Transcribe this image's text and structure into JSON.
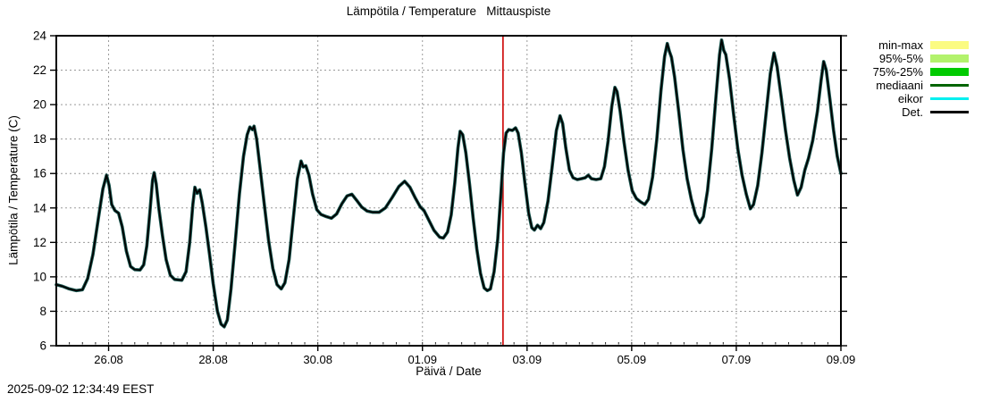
{
  "title": "Lämpötila / Temperature   Mittauspiste",
  "footer": {
    "timestamp": "2025-09-02 12:34:49 EEST"
  },
  "legend": {
    "position": "outside-right-top",
    "items": [
      {
        "label": "min-max",
        "swatch": "box",
        "color": "#fbfb82"
      },
      {
        "label": "95%-5%",
        "swatch": "box",
        "color": "#b2f26c"
      },
      {
        "label": "75%-25%",
        "swatch": "box",
        "color": "#00ca00"
      },
      {
        "label": "mediaani",
        "swatch": "line",
        "color": "#006400"
      },
      {
        "label": "eikor",
        "swatch": "line",
        "color": "#00f0f0"
      },
      {
        "label": "Det.",
        "swatch": "line",
        "color": "#000000"
      }
    ]
  },
  "chart_data": {
    "type": "line",
    "title": "Lämpötila / Temperature   Mittauspiste",
    "xlabel": "Päivä / Date",
    "ylabel": "Lämpötila / Temperature (C)",
    "x_unit": "days since 25.08 00:00",
    "xlim": [
      0,
      15
    ],
    "ylim": [
      6,
      24
    ],
    "grid": true,
    "xticks": [
      {
        "t": 1,
        "label": "26.08"
      },
      {
        "t": 3,
        "label": "28.08"
      },
      {
        "t": 5,
        "label": "30.08"
      },
      {
        "t": 7,
        "label": "01.09"
      },
      {
        "t": 9,
        "label": "03.09"
      },
      {
        "t": 11,
        "label": "05.09"
      },
      {
        "t": 13,
        "label": "07.09"
      },
      {
        "t": 15,
        "label": "09.09"
      }
    ],
    "yticks": [
      6,
      8,
      10,
      12,
      14,
      16,
      18,
      20,
      22,
      24
    ],
    "x_minor_tick_interval": 0.25,
    "now_line": {
      "t": 8.54,
      "color": "#cc0000"
    },
    "series": [
      {
        "name": "Det.",
        "color": "#000000",
        "halo_color": "#14524b",
        "points": [
          [
            0.0,
            9.55
          ],
          [
            0.12,
            9.45
          ],
          [
            0.25,
            9.3
          ],
          [
            0.38,
            9.2
          ],
          [
            0.5,
            9.25
          ],
          [
            0.6,
            9.9
          ],
          [
            0.7,
            11.3
          ],
          [
            0.8,
            13.3
          ],
          [
            0.89,
            15.1
          ],
          [
            0.96,
            15.9
          ],
          [
            1.01,
            15.3
          ],
          [
            1.06,
            14.2
          ],
          [
            1.12,
            13.85
          ],
          [
            1.19,
            13.7
          ],
          [
            1.26,
            12.9
          ],
          [
            1.34,
            11.5
          ],
          [
            1.42,
            10.6
          ],
          [
            1.5,
            10.42
          ],
          [
            1.6,
            10.4
          ],
          [
            1.67,
            10.7
          ],
          [
            1.73,
            11.8
          ],
          [
            1.79,
            13.8
          ],
          [
            1.84,
            15.6
          ],
          [
            1.87,
            16.05
          ],
          [
            1.91,
            15.4
          ],
          [
            1.96,
            14.0
          ],
          [
            2.03,
            12.4
          ],
          [
            2.1,
            11.0
          ],
          [
            2.18,
            10.1
          ],
          [
            2.26,
            9.85
          ],
          [
            2.4,
            9.8
          ],
          [
            2.48,
            10.3
          ],
          [
            2.55,
            12.0
          ],
          [
            2.61,
            14.2
          ],
          [
            2.65,
            15.2
          ],
          [
            2.69,
            14.85
          ],
          [
            2.74,
            15.05
          ],
          [
            2.79,
            14.3
          ],
          [
            2.86,
            12.9
          ],
          [
            2.93,
            11.3
          ],
          [
            3.0,
            9.6
          ],
          [
            3.08,
            8.0
          ],
          [
            3.15,
            7.25
          ],
          [
            3.21,
            7.1
          ],
          [
            3.27,
            7.5
          ],
          [
            3.34,
            9.3
          ],
          [
            3.42,
            12.0
          ],
          [
            3.5,
            14.8
          ],
          [
            3.58,
            17.0
          ],
          [
            3.65,
            18.25
          ],
          [
            3.7,
            18.7
          ],
          [
            3.75,
            18.55
          ],
          [
            3.78,
            18.75
          ],
          [
            3.83,
            18.0
          ],
          [
            3.9,
            16.2
          ],
          [
            3.98,
            14.1
          ],
          [
            4.06,
            12.1
          ],
          [
            4.14,
            10.5
          ],
          [
            4.22,
            9.55
          ],
          [
            4.3,
            9.3
          ],
          [
            4.37,
            9.65
          ],
          [
            4.45,
            11.0
          ],
          [
            4.53,
            13.4
          ],
          [
            4.61,
            15.7
          ],
          [
            4.68,
            16.72
          ],
          [
            4.72,
            16.38
          ],
          [
            4.77,
            16.45
          ],
          [
            4.83,
            15.9
          ],
          [
            4.9,
            14.8
          ],
          [
            4.98,
            13.9
          ],
          [
            5.06,
            13.62
          ],
          [
            5.16,
            13.5
          ],
          [
            5.26,
            13.4
          ],
          [
            5.36,
            13.65
          ],
          [
            5.46,
            14.25
          ],
          [
            5.56,
            14.7
          ],
          [
            5.65,
            14.8
          ],
          [
            5.74,
            14.45
          ],
          [
            5.84,
            14.05
          ],
          [
            5.94,
            13.82
          ],
          [
            6.05,
            13.75
          ],
          [
            6.17,
            13.75
          ],
          [
            6.29,
            14.0
          ],
          [
            6.42,
            14.6
          ],
          [
            6.55,
            15.25
          ],
          [
            6.66,
            15.55
          ],
          [
            6.76,
            15.2
          ],
          [
            6.86,
            14.6
          ],
          [
            6.96,
            14.05
          ],
          [
            7.03,
            13.85
          ],
          [
            7.12,
            13.3
          ],
          [
            7.22,
            12.7
          ],
          [
            7.33,
            12.3
          ],
          [
            7.4,
            12.25
          ],
          [
            7.48,
            12.6
          ],
          [
            7.55,
            13.6
          ],
          [
            7.62,
            15.5
          ],
          [
            7.68,
            17.5
          ],
          [
            7.72,
            18.45
          ],
          [
            7.77,
            18.25
          ],
          [
            7.83,
            17.2
          ],
          [
            7.9,
            15.4
          ],
          [
            7.97,
            13.4
          ],
          [
            8.04,
            11.6
          ],
          [
            8.11,
            10.2
          ],
          [
            8.18,
            9.35
          ],
          [
            8.24,
            9.2
          ],
          [
            8.3,
            9.3
          ],
          [
            8.37,
            10.3
          ],
          [
            8.44,
            12.2
          ],
          [
            8.5,
            14.8
          ],
          [
            8.55,
            17.2
          ],
          [
            8.6,
            18.35
          ],
          [
            8.65,
            18.55
          ],
          [
            8.72,
            18.5
          ],
          [
            8.78,
            18.65
          ],
          [
            8.83,
            18.35
          ],
          [
            8.89,
            17.2
          ],
          [
            8.96,
            15.4
          ],
          [
            9.03,
            13.7
          ],
          [
            9.09,
            12.85
          ],
          [
            9.14,
            12.72
          ],
          [
            9.2,
            13.0
          ],
          [
            9.26,
            12.8
          ],
          [
            9.32,
            13.15
          ],
          [
            9.4,
            14.4
          ],
          [
            9.48,
            16.4
          ],
          [
            9.56,
            18.5
          ],
          [
            9.63,
            19.35
          ],
          [
            9.68,
            18.9
          ],
          [
            9.74,
            17.5
          ],
          [
            9.81,
            16.2
          ],
          [
            9.88,
            15.75
          ],
          [
            9.96,
            15.65
          ],
          [
            10.04,
            15.7
          ],
          [
            10.11,
            15.75
          ],
          [
            10.17,
            15.9
          ],
          [
            10.23,
            15.7
          ],
          [
            10.32,
            15.65
          ],
          [
            10.41,
            15.7
          ],
          [
            10.48,
            16.4
          ],
          [
            10.55,
            17.9
          ],
          [
            10.62,
            19.9
          ],
          [
            10.68,
            21.0
          ],
          [
            10.72,
            20.75
          ],
          [
            10.78,
            19.6
          ],
          [
            10.85,
            17.9
          ],
          [
            10.93,
            16.2
          ],
          [
            11.01,
            15.0
          ],
          [
            11.09,
            14.55
          ],
          [
            11.17,
            14.35
          ],
          [
            11.25,
            14.2
          ],
          [
            11.32,
            14.5
          ],
          [
            11.4,
            15.8
          ],
          [
            11.48,
            18.0
          ],
          [
            11.56,
            20.8
          ],
          [
            11.63,
            22.8
          ],
          [
            11.68,
            23.55
          ],
          [
            11.72,
            23.1
          ],
          [
            11.76,
            22.75
          ],
          [
            11.82,
            21.6
          ],
          [
            11.9,
            19.6
          ],
          [
            11.98,
            17.4
          ],
          [
            12.06,
            15.7
          ],
          [
            12.14,
            14.5
          ],
          [
            12.22,
            13.6
          ],
          [
            12.3,
            13.15
          ],
          [
            12.37,
            13.5
          ],
          [
            12.45,
            15.0
          ],
          [
            12.53,
            17.4
          ],
          [
            12.61,
            20.4
          ],
          [
            12.68,
            22.9
          ],
          [
            12.72,
            23.75
          ],
          [
            12.76,
            23.15
          ],
          [
            12.8,
            22.9
          ],
          [
            12.87,
            21.5
          ],
          [
            12.95,
            19.4
          ],
          [
            13.03,
            17.4
          ],
          [
            13.11,
            15.9
          ],
          [
            13.19,
            14.8
          ],
          [
            13.27,
            13.95
          ],
          [
            13.33,
            14.2
          ],
          [
            13.41,
            15.3
          ],
          [
            13.49,
            17.2
          ],
          [
            13.57,
            19.5
          ],
          [
            13.65,
            21.8
          ],
          [
            13.72,
            23.0
          ],
          [
            13.78,
            22.2
          ],
          [
            13.86,
            20.4
          ],
          [
            13.94,
            18.5
          ],
          [
            14.02,
            16.9
          ],
          [
            14.1,
            15.6
          ],
          [
            14.17,
            14.75
          ],
          [
            14.24,
            15.2
          ],
          [
            14.31,
            16.2
          ],
          [
            14.38,
            16.88
          ],
          [
            14.46,
            17.9
          ],
          [
            14.55,
            19.6
          ],
          [
            14.62,
            21.4
          ],
          [
            14.67,
            22.5
          ],
          [
            14.72,
            22.0
          ],
          [
            14.79,
            20.3
          ],
          [
            14.86,
            18.5
          ],
          [
            14.93,
            17.0
          ],
          [
            15.0,
            16.0
          ]
        ]
      }
    ]
  }
}
